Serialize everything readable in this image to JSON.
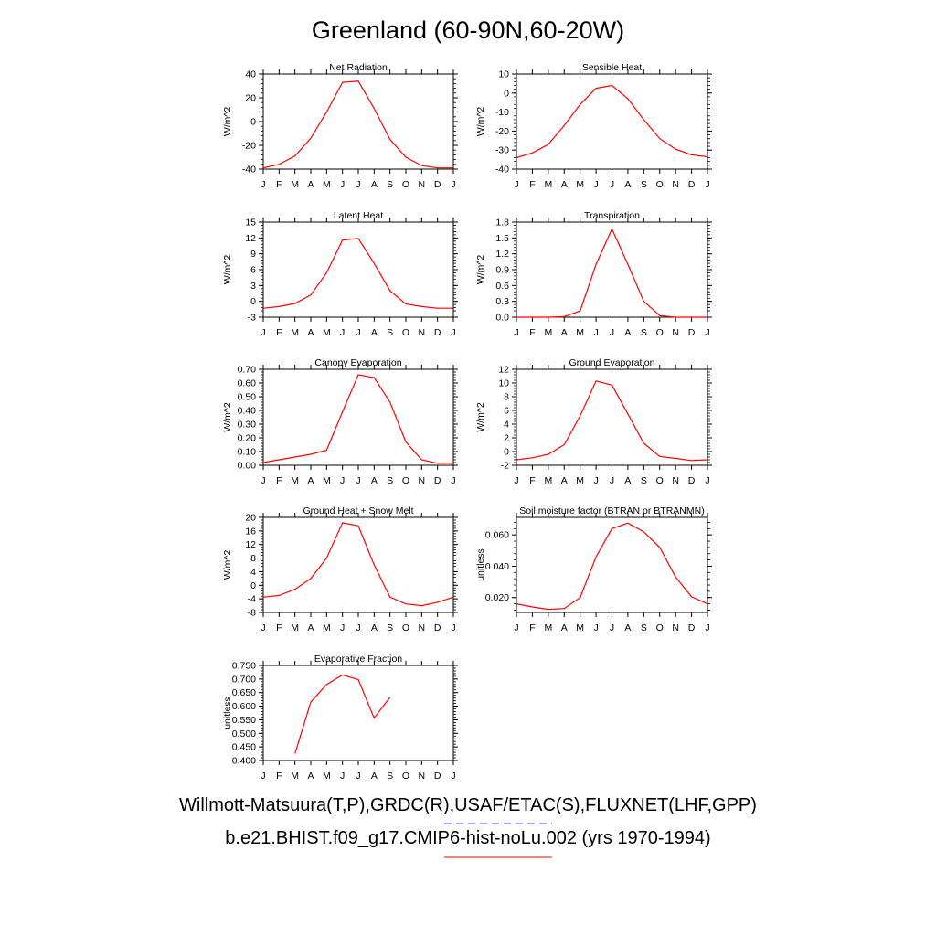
{
  "title": "Greenland (60-90N,60-20W)",
  "months": [
    "J",
    "F",
    "M",
    "A",
    "M",
    "J",
    "J",
    "A",
    "S",
    "O",
    "N",
    "D",
    "J"
  ],
  "colors": {
    "model": "#ff0000",
    "obs": "#4444ff",
    "axis": "#000000"
  },
  "legend": {
    "obs": "Willmott-Matsuura(T,P),GRDC(R),USAF/ETAC(S),FLUXNET(LHF,GPP)",
    "model": "b.e21.BHIST.f09_g17.CMIP6-hist-noLu.002 (yrs 1970-1994)"
  },
  "chart_data": [
    {
      "type": "line",
      "title": "Net Radiation",
      "ylabel": "W/m^2",
      "yticks": [
        "-40",
        "-20",
        "0",
        "20",
        "40"
      ],
      "ylim": [
        -40,
        40
      ],
      "x": [
        1,
        2,
        3,
        4,
        5,
        6,
        7,
        8,
        9,
        10,
        11,
        12,
        13
      ],
      "series": [
        {
          "values": [
            -39,
            -36,
            -29,
            -14,
            8,
            33,
            34,
            11,
            -15,
            -30,
            -37,
            -39,
            -39
          ]
        }
      ]
    },
    {
      "type": "line",
      "title": "Sensible Heat",
      "ylabel": "W/m^2",
      "yticks": [
        "-40",
        "-30",
        "-20",
        "-10",
        "0",
        "10"
      ],
      "ylim": [
        -40,
        10
      ],
      "x": [
        1,
        2,
        3,
        4,
        5,
        6,
        7,
        8,
        9,
        10,
        11,
        12,
        13
      ],
      "series": [
        {
          "values": [
            -34,
            -31.5,
            -27,
            -17,
            -6,
            2.5,
            4,
            -3,
            -14,
            -24,
            -29.5,
            -32.5,
            -33.5
          ]
        }
      ]
    },
    {
      "type": "line",
      "title": "Latent Heat",
      "ylabel": "W/m^2",
      "yticks": [
        "-3",
        "0",
        "3",
        "6",
        "9",
        "12",
        "15"
      ],
      "ylim": [
        -3,
        15
      ],
      "x": [
        1,
        2,
        3,
        4,
        5,
        6,
        7,
        8,
        9,
        10,
        11,
        12,
        13
      ],
      "series": [
        {
          "values": [
            -1.3,
            -1,
            -0.4,
            1.2,
            5.4,
            11.6,
            11.9,
            7.2,
            2,
            -0.5,
            -1,
            -1.3,
            -1.3
          ]
        }
      ]
    },
    {
      "type": "line",
      "title": "Transpiration",
      "ylabel": "W/m^2",
      "yticks": [
        "0.0",
        "0.3",
        "0.6",
        "0.9",
        "1.2",
        "1.5",
        "1.8"
      ],
      "ylim": [
        0,
        1.8
      ],
      "x": [
        1,
        2,
        3,
        4,
        5,
        6,
        7,
        8,
        9,
        10,
        11,
        12,
        13
      ],
      "series": [
        {
          "values": [
            0,
            0,
            0,
            0.01,
            0.12,
            1,
            1.67,
            1,
            0.3,
            0.03,
            0,
            0,
            0
          ]
        }
      ]
    },
    {
      "type": "line",
      "title": "Canopy Evaporation",
      "ylabel": "W/m^2",
      "yticks": [
        "0.00",
        "0.10",
        "0.20",
        "0.30",
        "0.40",
        "0.50",
        "0.60",
        "0.70"
      ],
      "ylim": [
        0,
        0.7
      ],
      "x": [
        1,
        2,
        3,
        4,
        5,
        6,
        7,
        8,
        9,
        10,
        11,
        12,
        13
      ],
      "series": [
        {
          "values": [
            0.02,
            0.04,
            0.06,
            0.08,
            0.11,
            0.39,
            0.66,
            0.64,
            0.46,
            0.17,
            0.04,
            0.015,
            0.015
          ]
        }
      ]
    },
    {
      "type": "line",
      "title": "Ground Evaporation",
      "ylabel": "W/m^2",
      "yticks": [
        "-2",
        "0",
        "2",
        "4",
        "6",
        "8",
        "10",
        "12"
      ],
      "ylim": [
        -2,
        12
      ],
      "x": [
        1,
        2,
        3,
        4,
        5,
        6,
        7,
        8,
        9,
        10,
        11,
        12,
        13
      ],
      "series": [
        {
          "values": [
            -1.2,
            -0.9,
            -0.4,
            1,
            5.2,
            10.3,
            9.7,
            5.5,
            1.2,
            -0.7,
            -1,
            -1.3,
            -1.2
          ]
        }
      ]
    },
    {
      "type": "line",
      "title": "Ground Heat + Snow Melt",
      "ylabel": "W/m^2",
      "yticks": [
        "-8",
        "-4",
        "0",
        "4",
        "8",
        "12",
        "16",
        "20"
      ],
      "ylim": [
        -8,
        20
      ],
      "x": [
        1,
        2,
        3,
        4,
        5,
        6,
        7,
        8,
        9,
        10,
        11,
        12,
        13
      ],
      "series": [
        {
          "values": [
            -3.5,
            -3,
            -1.2,
            2,
            8,
            18.4,
            17.5,
            6,
            -3.5,
            -5.5,
            -6,
            -5,
            -3.5
          ]
        }
      ]
    },
    {
      "type": "line",
      "title": "Soil moisture factor (BTRAN or BTRANMN)",
      "ylabel": "unitless",
      "yticks": [
        "0.020",
        "0.040",
        "0.060"
      ],
      "ylim": [
        0.0105,
        0.0712
      ],
      "x": [
        1,
        2,
        3,
        4,
        5,
        6,
        7,
        8,
        9,
        10,
        11,
        12,
        13
      ],
      "series": [
        {
          "values": [
            0.016,
            0.014,
            0.0125,
            0.013,
            0.02,
            0.046,
            0.064,
            0.0675,
            0.062,
            0.052,
            0.033,
            0.0205,
            0.016
          ]
        }
      ]
    },
    {
      "type": "line",
      "title": "Evaporative Fraction",
      "ylabel": "unitless",
      "yticks": [
        "0.400",
        "0.450",
        "0.500",
        "0.550",
        "0.600",
        "0.650",
        "0.700",
        "0.750"
      ],
      "ylim": [
        0.4,
        0.75
      ],
      "x": [
        1,
        2,
        3,
        4,
        5,
        6,
        7,
        8,
        9,
        10,
        11,
        12,
        13
      ],
      "series": [
        {
          "values": [
            null,
            null,
            0.425,
            0.615,
            0.68,
            0.715,
            0.698,
            0.556,
            0.633,
            null,
            null,
            null,
            null
          ]
        }
      ]
    }
  ]
}
